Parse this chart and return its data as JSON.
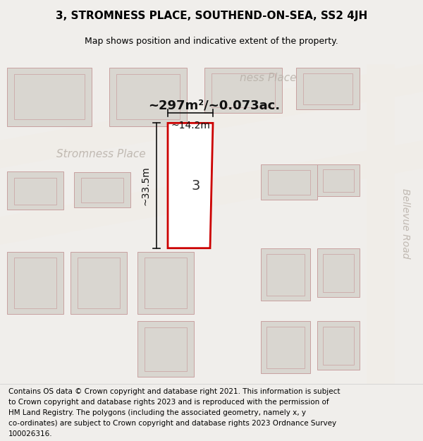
{
  "title": "3, STROMNESS PLACE, SOUTHEND-ON-SEA, SS2 4JH",
  "subtitle": "Map shows position and indicative extent of the property.",
  "area_text": "~297m²/~0.073ac.",
  "dim_width": "~14.2m",
  "dim_height": "~33.5m",
  "property_number": "3",
  "street_label_1": "Stromness Place",
  "street_label_2": "ness Place",
  "road_label": "Bellevue Road",
  "footer": "Contains OS data © Crown copyright and database right 2021. This information is subject to Crown copyright and database rights 2023 and is reproduced with the permission of HM Land Registry. The polygons (including the associated geometry, namely x, y co-ordinates) are subject to Crown copyright and database rights 2023 Ordnance Survey 100026316.",
  "bg_color": "#f0eeeb",
  "map_bg": "#e8e6e3",
  "building_fill": "#d8d5d0",
  "building_edge": "#c8a8a8",
  "property_fill": "#ffffff",
  "property_edge": "#cc0000",
  "road_fill": "#ffffff",
  "title_fontsize": 11,
  "subtitle_fontsize": 9,
  "footer_fontsize": 7.5
}
